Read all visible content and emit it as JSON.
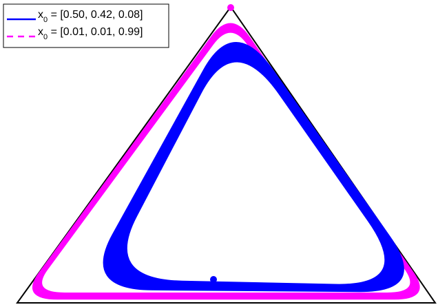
{
  "legend": {
    "items": [
      {
        "prefix": "x",
        "subscript": "0",
        "text": " = [0.50, 0.42, 0.08]",
        "color": "#0000ff",
        "style": "solid"
      },
      {
        "prefix": "x",
        "subscript": "0",
        "text": " = [0.01, 0.01, 0.99]",
        "color": "#ff00ff",
        "style": "dashed"
      }
    ]
  },
  "chart_data": {
    "type": "simplex-trajectory",
    "simplex_color": "#000000",
    "series": [
      {
        "initial_condition": [
          0.5,
          0.42,
          0.08
        ],
        "color": "#0000ff",
        "line_style": "solid",
        "start_marker": "dot"
      },
      {
        "initial_condition": [
          0.01,
          0.01,
          0.99
        ],
        "color": "#ff00ff",
        "line_style": "dashed",
        "start_marker": "dot"
      }
    ]
  }
}
